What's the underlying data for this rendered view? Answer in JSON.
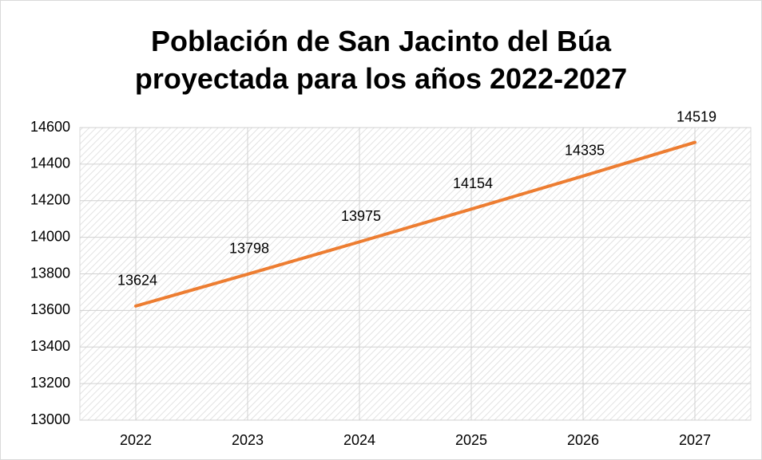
{
  "chart_data": {
    "type": "line",
    "title": "Población de San Jacinto del Búa proyectada para los años 2022-2027",
    "categories": [
      "2022",
      "2023",
      "2024",
      "2025",
      "2026",
      "2027"
    ],
    "values": [
      13624,
      13798,
      13975,
      14154,
      14335,
      14519
    ],
    "color": "#ed7d31",
    "ylim": [
      13000,
      14600
    ],
    "yticks": [
      13000,
      13200,
      13400,
      13600,
      13800,
      14000,
      14200,
      14400,
      14600
    ],
    "grid": true
  }
}
